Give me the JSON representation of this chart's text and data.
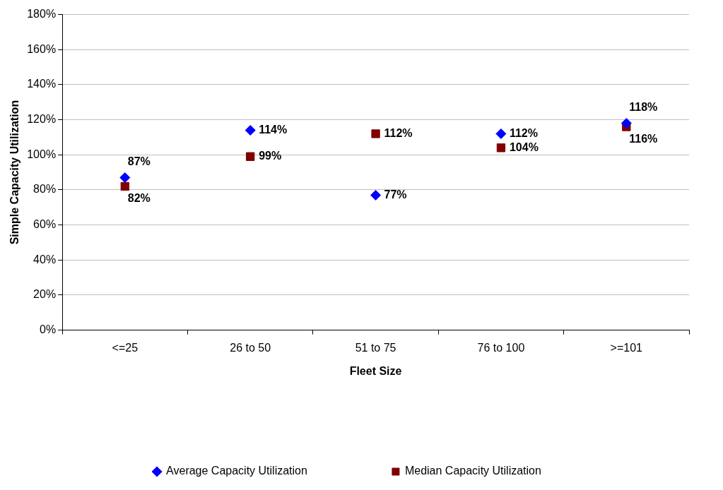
{
  "chart_data": {
    "type": "scatter",
    "xlabel": "Fleet Size",
    "ylabel": "Simple Capacity Utilization",
    "categories": [
      "<=25",
      "26 to 50",
      "51 to 75",
      "76 to 100",
      ">=101"
    ],
    "series": [
      {
        "name": "Average Capacity Utilization",
        "color": "#0000ff",
        "marker": "diamond",
        "values": [
          87,
          114,
          77,
          112,
          118
        ],
        "value_labels": [
          "87%",
          "114%",
          "77%",
          "112%",
          "118%"
        ]
      },
      {
        "name": "Median Capacity Utilization",
        "color": "#800000",
        "marker": "square",
        "values": [
          82,
          99,
          112,
          104,
          116
        ],
        "value_labels": [
          "82%",
          "99%",
          "112%",
          "104%",
          "116%"
        ]
      }
    ],
    "ylim": [
      0,
      180
    ],
    "yticks": [
      {
        "value": 0,
        "label": "0%"
      },
      {
        "value": 20,
        "label": "20%"
      },
      {
        "value": 40,
        "label": "40%"
      },
      {
        "value": 60,
        "label": "60%"
      },
      {
        "value": 80,
        "label": "80%"
      },
      {
        "value": 100,
        "label": "100%"
      },
      {
        "value": 120,
        "label": "120%"
      },
      {
        "value": 140,
        "label": "140%"
      },
      {
        "value": 160,
        "label": "160%"
      },
      {
        "value": 180,
        "label": "180%"
      }
    ],
    "grid": "y",
    "legend": "bottom"
  }
}
